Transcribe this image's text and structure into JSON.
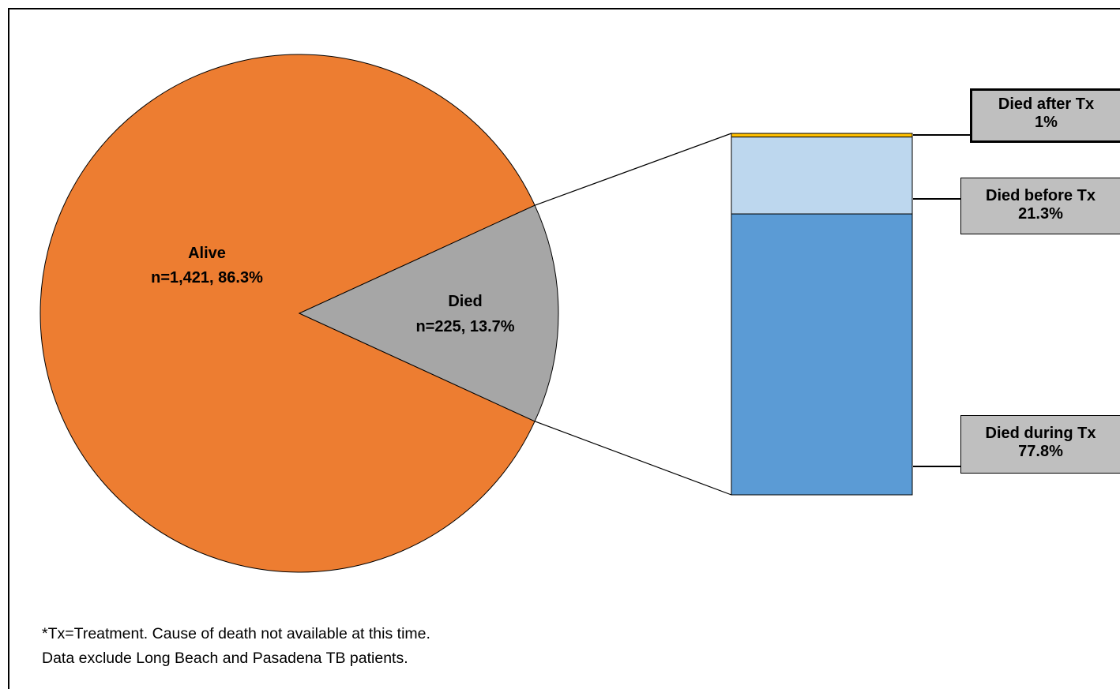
{
  "chart_data": [
    {
      "type": "pie",
      "slices": [
        {
          "label": "Alive",
          "detail": "n=1,421, 86.3%",
          "n": 1421,
          "percent": 86.3,
          "color": "#ed7d31"
        },
        {
          "label": "Died",
          "detail": "n=225, 13.7%",
          "n": 225,
          "percent": 13.7,
          "color": "#a6a6a6"
        }
      ]
    },
    {
      "type": "bar",
      "stacked": true,
      "breakdown_of": "Died",
      "segments": [
        {
          "label": "Died during Tx",
          "value_label": "77.8%",
          "percent": 77.8,
          "color": "#5b9bd5"
        },
        {
          "label": "Died before Tx",
          "value_label": "21.3%",
          "percent": 21.3,
          "color": "#bdd7ee"
        },
        {
          "label": "Died after Tx",
          "value_label": "1%",
          "percent": 1,
          "color": "#ffc000"
        }
      ]
    }
  ],
  "notes": {
    "line1": "*Tx=Treatment. Cause of death not available at this time.",
    "line2": "Data exclude Long Beach and Pasadena TB patients."
  }
}
